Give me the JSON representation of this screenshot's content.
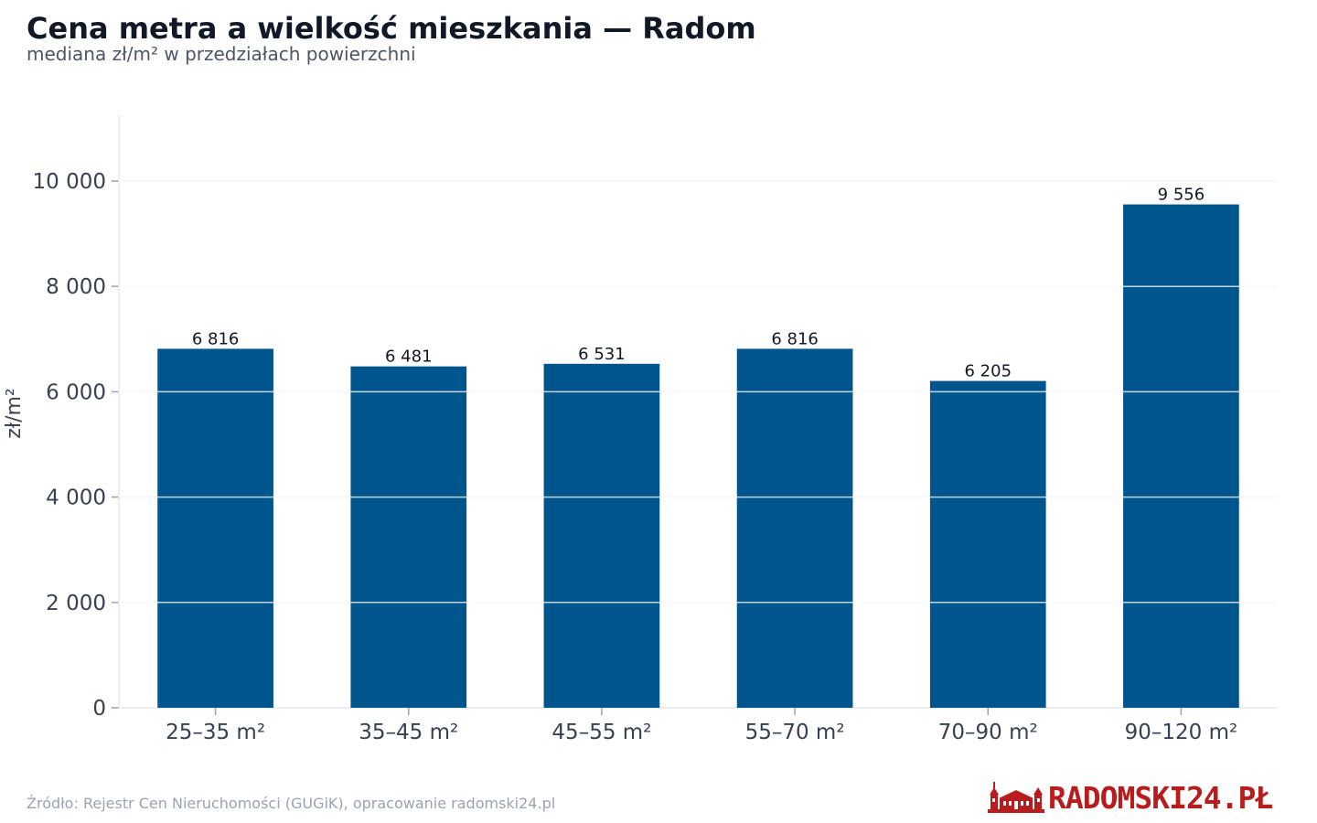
{
  "chart_data": {
    "type": "bar",
    "title": "Cena metra a wielkość mieszkania — Radom",
    "subtitle": "mediana zł/m² w przedziałach powierzchni",
    "xlabel": "",
    "ylabel": "zł/m²",
    "categories": [
      "25–35 m²",
      "35–45 m²",
      "45–55 m²",
      "55–70 m²",
      "70–90 m²",
      "90–120 m²"
    ],
    "values": [
      6816,
      6481,
      6531,
      6816,
      6205,
      9556
    ],
    "value_labels": [
      "6 816",
      "6 481",
      "6 531",
      "6 816",
      "6 205",
      "9 556"
    ],
    "ylim": [
      0,
      11250
    ],
    "yticks": [
      0,
      2000,
      4000,
      6000,
      8000,
      10000
    ],
    "ytick_labels": [
      "0",
      "2 000",
      "4 000",
      "6 000",
      "8 000",
      "10 000"
    ],
    "grid": true,
    "legend": "none"
  },
  "colors": {
    "bar": "#01558d",
    "grid": "#e5e7eb",
    "brand": "#b91c1c"
  },
  "footer": {
    "source": "Źródło: Rejestr Cen Nieruchomości (GUGiK), opracowanie radomski24.pl",
    "brand": "RADOMSKI24.PŁ",
    "brand_icon": "town-hall-icon"
  }
}
